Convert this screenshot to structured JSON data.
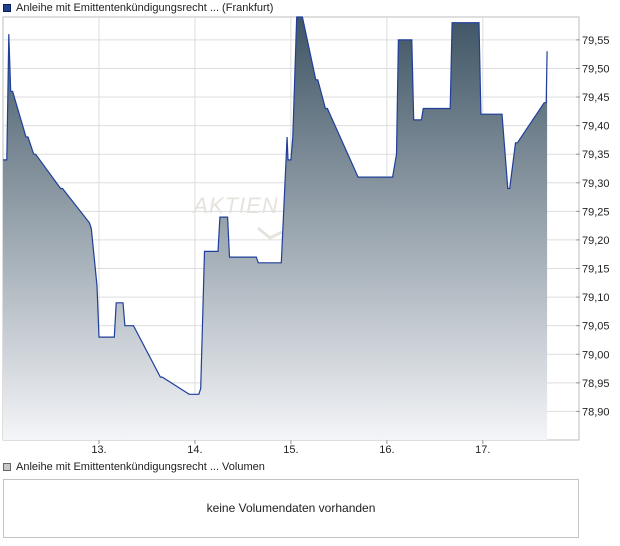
{
  "legend": {
    "price_label": "Anleihe mit Emittentenkündigungsrecht ... (Frankfurt)",
    "volume_label": "Anleihe mit Emittentenkündigungsrecht ... Volumen"
  },
  "watermark": "AKTIEN",
  "volume": {
    "message": "keine Volumendaten vorhanden"
  },
  "colors": {
    "line": "#1f3f9a",
    "fill_top": "#3f5565",
    "fill_bottom": "#f4f5f8",
    "grid": "#dddddd",
    "frame": "#bdbdbd"
  },
  "chart_data": {
    "type": "area",
    "title": "",
    "xlabel": "",
    "ylabel": "",
    "x_categories": [
      "13.",
      "14.",
      "15.",
      "16.",
      "17."
    ],
    "xlim": [
      12.0,
      17.7
    ],
    "ylim": [
      78.85,
      79.59
    ],
    "y_ticks": [
      "78,90",
      "78,95",
      "79,00",
      "79,05",
      "79,10",
      "79,15",
      "79,20",
      "79,25",
      "79,30",
      "79,35",
      "79,40",
      "79,45",
      "79,50",
      "79,55"
    ],
    "y_tick_values": [
      78.9,
      78.95,
      79.0,
      79.05,
      79.1,
      79.15,
      79.2,
      79.25,
      79.3,
      79.35,
      79.4,
      79.45,
      79.5,
      79.55
    ],
    "grid": true,
    "series": [
      {
        "x": [
          12.0,
          12.04,
          12.06,
          12.08,
          12.1,
          12.24,
          12.26,
          12.32,
          12.34,
          12.6,
          12.62,
          12.9,
          12.92,
          12.98,
          13.0,
          13.04,
          13.06,
          13.07,
          13.09,
          13.16,
          13.18,
          13.25,
          13.27,
          13.34,
          13.36,
          13.64,
          13.66,
          13.94,
          13.96,
          14.04,
          14.06,
          14.1,
          14.12,
          14.24,
          14.26,
          14.34,
          14.36,
          14.64,
          14.66,
          14.88,
          14.9,
          14.96,
          14.97,
          15.0,
          15.02,
          15.06,
          15.08,
          15.1,
          15.12,
          15.26,
          15.28,
          15.36,
          15.38,
          15.7,
          15.72,
          16.04,
          16.06,
          16.1,
          16.12,
          16.26,
          16.28,
          16.36,
          16.38,
          16.66,
          16.68,
          16.92,
          16.94,
          16.96,
          16.98,
          17.04,
          17.06,
          17.18,
          17.2,
          17.26,
          17.28,
          17.34,
          17.36,
          17.64,
          17.66,
          17.67
        ],
        "y": [
          79.34,
          79.34,
          79.56,
          79.46,
          79.46,
          79.38,
          79.38,
          79.35,
          79.35,
          79.29,
          79.29,
          79.23,
          79.22,
          79.12,
          79.03,
          79.03,
          79.03,
          79.03,
          79.03,
          79.03,
          79.09,
          79.09,
          79.05,
          79.05,
          79.05,
          78.96,
          78.96,
          78.93,
          78.93,
          78.93,
          78.94,
          79.18,
          79.18,
          79.18,
          79.24,
          79.24,
          79.17,
          79.17,
          79.16,
          79.16,
          79.16,
          79.38,
          79.34,
          79.34,
          79.38,
          79.59,
          79.59,
          79.59,
          79.59,
          79.48,
          79.48,
          79.43,
          79.43,
          79.31,
          79.31,
          79.31,
          79.31,
          79.35,
          79.55,
          79.55,
          79.41,
          79.41,
          79.43,
          79.43,
          79.58,
          79.58,
          79.58,
          79.58,
          79.42,
          79.42,
          79.42,
          79.42,
          79.42,
          79.29,
          79.29,
          79.37,
          79.37,
          79.44,
          79.44,
          79.53
        ]
      }
    ]
  }
}
